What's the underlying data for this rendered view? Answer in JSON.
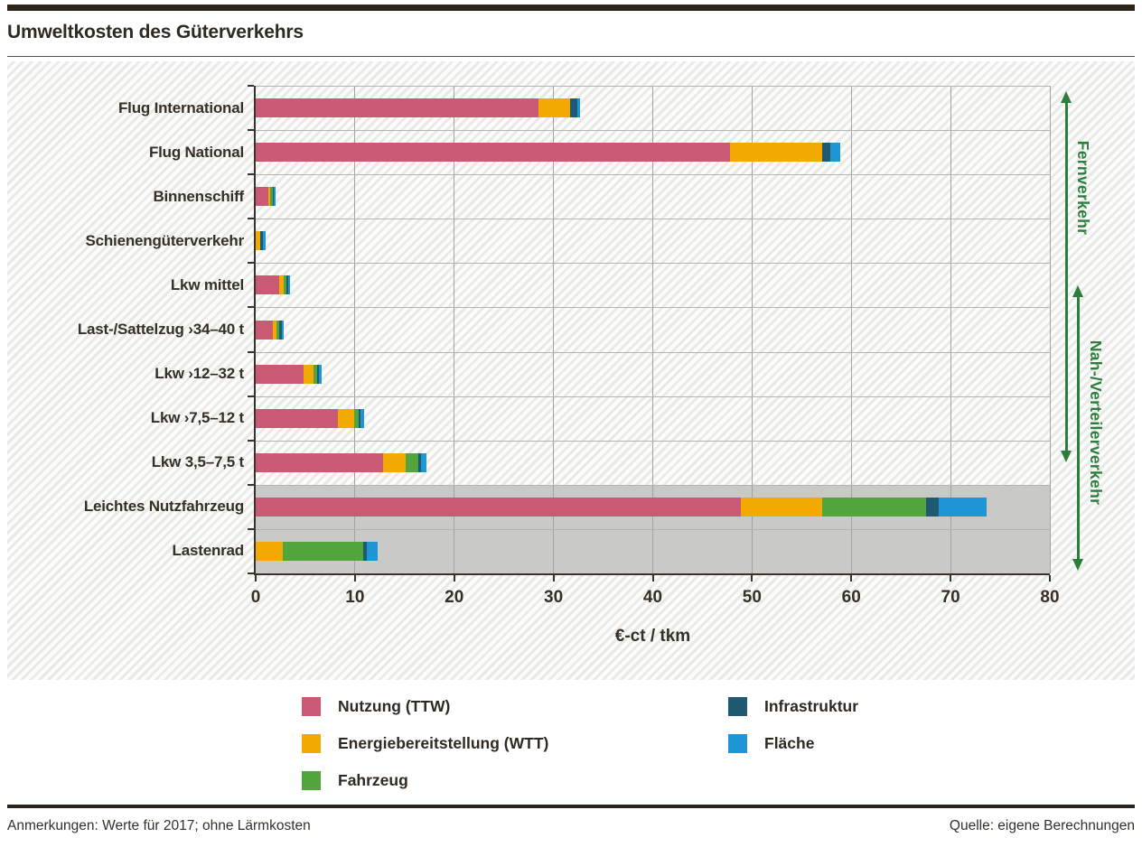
{
  "title": "Umweltkosten des Güterverkehrs",
  "footer": {
    "notes": "Anmerkungen: Werte für 2017; ohne Lärmkosten",
    "source": "Quelle: eigene Berechnungen"
  },
  "colors": {
    "ink": "#362f27",
    "rule": "#2b251e",
    "highlight_band": "#c9c9c7",
    "annotation": "#2b7e3c"
  },
  "chart_data": {
    "type": "bar",
    "orientation": "horizontal",
    "stacked": true,
    "title": "Umweltkosten des Güterverkehrs",
    "xlabel": "€-ct / tkm",
    "xlim": [
      0,
      80
    ],
    "xticks": [
      0,
      10,
      20,
      30,
      40,
      50,
      60,
      70,
      80
    ],
    "grid": "vertical",
    "unit": "€-ct / tkm",
    "categories": [
      "Flug International",
      "Flug National",
      "Binnenschiff",
      "Schienengüterverkehr",
      "Lkw mittel",
      "Last-/Sattelzug ›34–40 t",
      "Lkw ›12–32 t",
      "Lkw ›7,5–12 t",
      "Lkw 3,5–7,5 t",
      "Leichtes Nutzfahrzeug",
      "Lastenrad"
    ],
    "series": [
      {
        "name": "Nutzung (TTW)",
        "color": "#ca5a73",
        "values": [
          28.5,
          47.8,
          1.3,
          0,
          2.4,
          1.7,
          4.8,
          8.3,
          12.8,
          48.9,
          0
        ]
      },
      {
        "name": "Energiebereitstellung (WTT)",
        "color": "#f2a900",
        "values": [
          3.2,
          9.3,
          0.2,
          0.5,
          0.4,
          0.4,
          1.0,
          1.6,
          2.3,
          8.2,
          2.7
        ]
      },
      {
        "name": "Fahrzeug",
        "color": "#52a43c",
        "values": [
          0,
          0,
          0.2,
          0,
          0.3,
          0.3,
          0.4,
          0.5,
          1.3,
          10.4,
          8.1
        ]
      },
      {
        "name": "Infrastruktur",
        "color": "#1f5a72",
        "values": [
          0.7,
          0.8,
          0.1,
          0.25,
          0.2,
          0.2,
          0.2,
          0.2,
          0.3,
          1.3,
          0.4
        ]
      },
      {
        "name": "Fläche",
        "color": "#1e95d4",
        "values": [
          0.3,
          1.0,
          0.2,
          0.25,
          0.2,
          0.2,
          0.2,
          0.3,
          0.5,
          4.8,
          1.1
        ]
      }
    ],
    "totals": [
      32.7,
      58.9,
      2.0,
      1.0,
      3.5,
      2.8,
      6.6,
      10.9,
      17.2,
      73.6,
      12.3
    ],
    "highlighted_categories": [
      "Leichtes Nutzfahrzeug",
      "Lastenrad"
    ],
    "legend": {
      "position": "bottom",
      "columns": [
        [
          "Nutzung (TTW)",
          "Energiebereitstellung (WTT)",
          "Fahrzeug"
        ],
        [
          "Infrastruktur",
          "Fläche"
        ]
      ]
    },
    "group_annotations": [
      {
        "label": "Fernverkehr",
        "from": {
          "row": 0,
          "anchor": "top"
        },
        "to": {
          "row": 8,
          "anchor": "center"
        },
        "label_row_center": 2.3
      },
      {
        "label": "Nah-/Verteilerverkehr",
        "from": {
          "row": 4,
          "anchor": "center"
        },
        "to": {
          "row": 10,
          "anchor": "bottom"
        },
        "label_row_center": 7.6
      }
    ]
  }
}
